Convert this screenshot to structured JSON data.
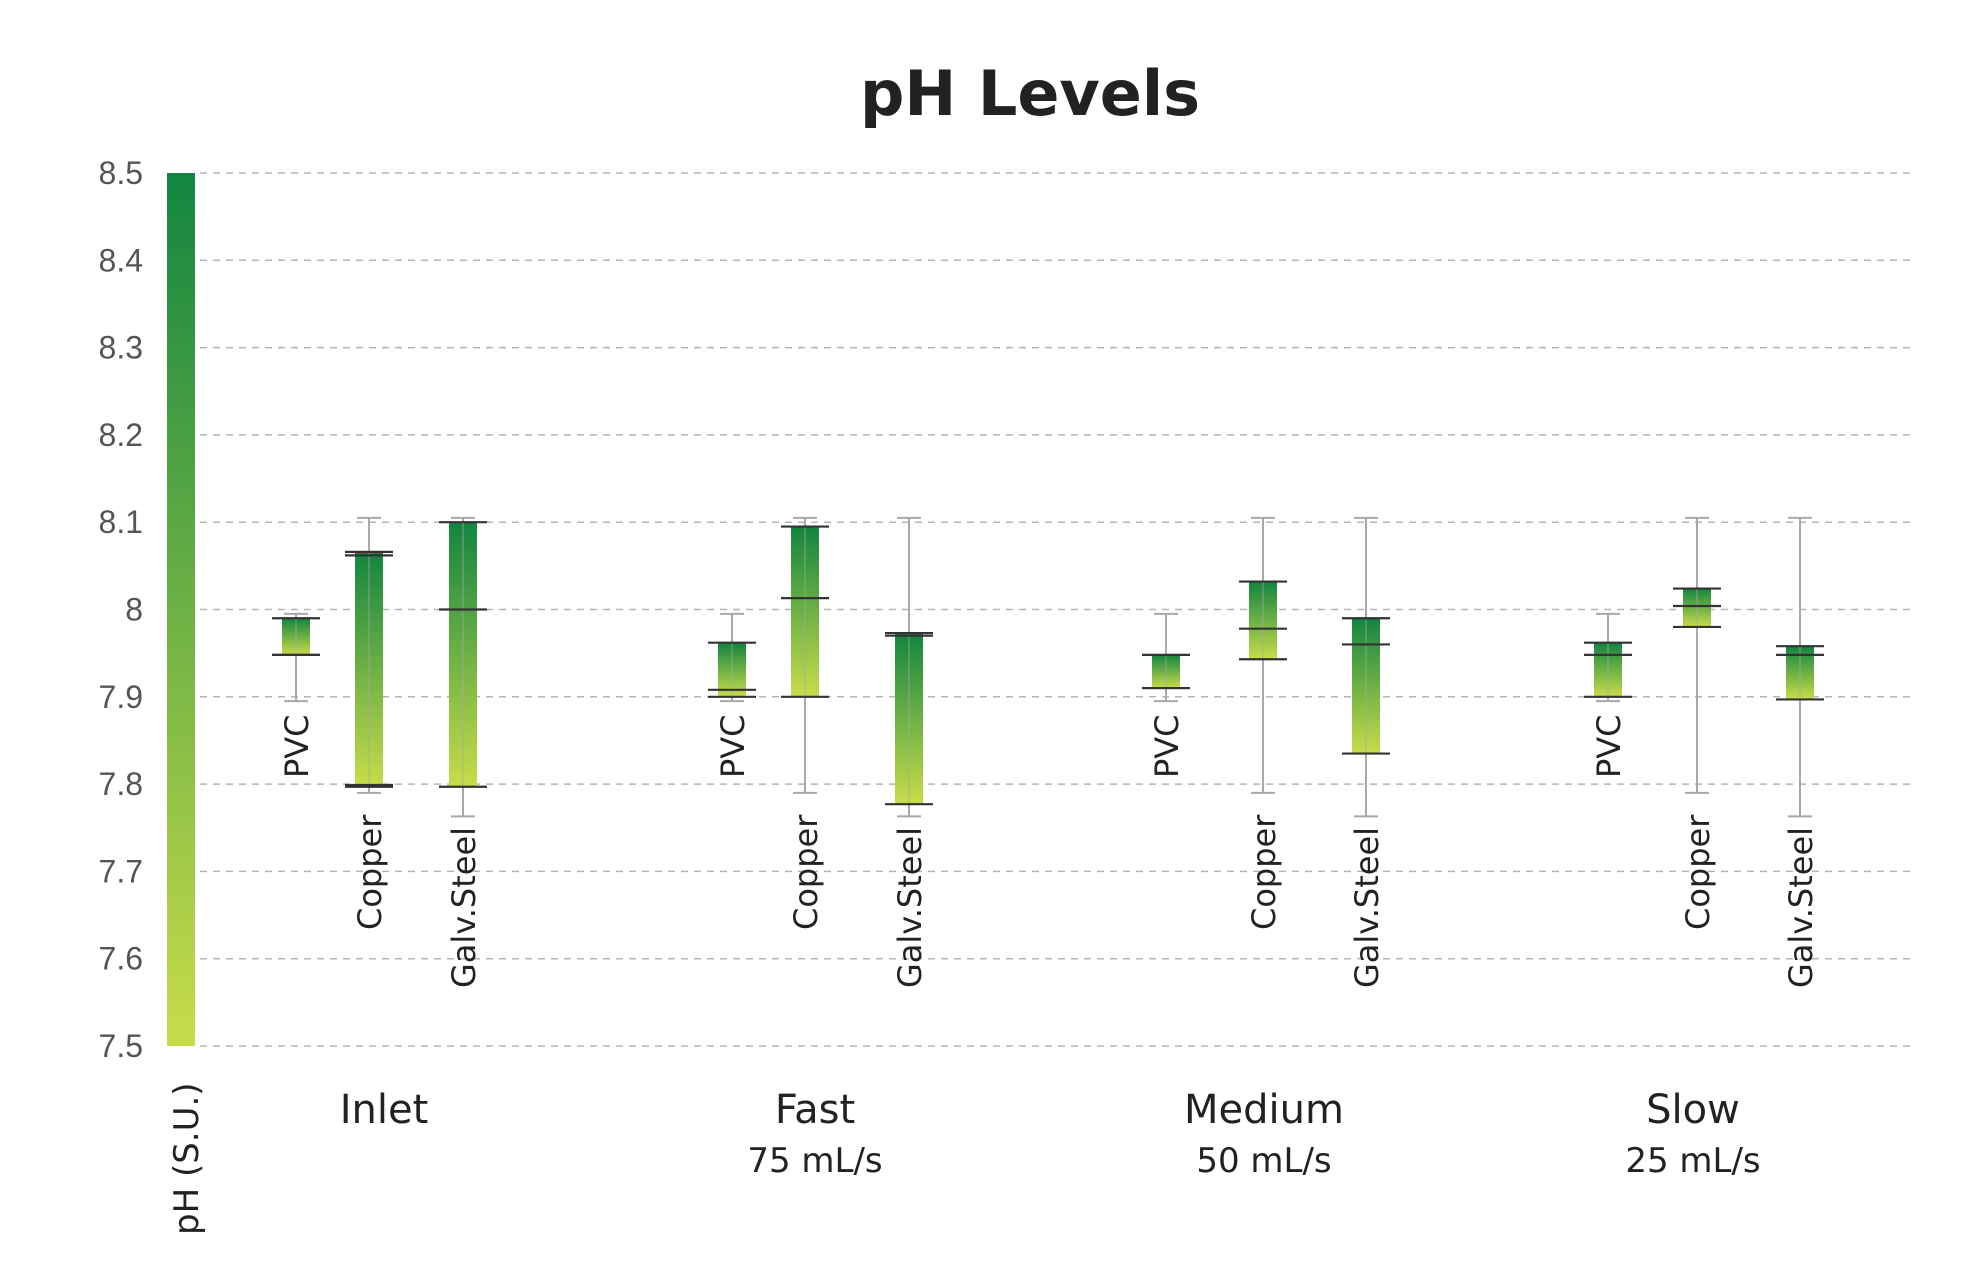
{
  "chart_data": {
    "type": "box",
    "title": "pH Levels",
    "ylabel": "pH (S.U.)",
    "ylim": [
      7.5,
      8.5
    ],
    "yticks": [
      "7.5",
      "7.6",
      "7.7",
      "7.8",
      "7.9",
      "8",
      "8.1",
      "8.2",
      "8.3",
      "8.4",
      "8.5"
    ],
    "grid": true,
    "colors": {
      "low": "#c8dc4a",
      "high": "#128540"
    },
    "categories": [
      {
        "label": "Inlet",
        "sublabel": ""
      },
      {
        "label": "Fast",
        "sublabel": "75 mL/s"
      },
      {
        "label": "Medium",
        "sublabel": "50 mL/s"
      },
      {
        "label": "Slow",
        "sublabel": "25 mL/s"
      }
    ],
    "series_labels": [
      "PVC",
      "Copper",
      "Galv.Steel"
    ],
    "boxes": [
      {
        "category": "Inlet",
        "series": "PVC",
        "min": 7.895,
        "q1": 7.948,
        "median": 7.948,
        "q3": 7.99,
        "max": 7.995,
        "extra": []
      },
      {
        "category": "Inlet",
        "series": "Copper",
        "min": 7.79,
        "q1": 7.797,
        "median": 8.062,
        "q3": 8.066,
        "max": 8.105,
        "extra": [
          7.799
        ]
      },
      {
        "category": "Inlet",
        "series": "Galv.Steel",
        "min": 7.763,
        "q1": 7.797,
        "median": 8.0,
        "q3": 8.1,
        "max": 8.105,
        "extra": []
      },
      {
        "category": "Fast",
        "series": "PVC",
        "min": 7.895,
        "q1": 7.9,
        "median": 7.908,
        "q3": 7.962,
        "max": 7.995,
        "extra": []
      },
      {
        "category": "Fast",
        "series": "Copper",
        "min": 7.79,
        "q1": 7.9,
        "median": 8.013,
        "q3": 8.095,
        "max": 8.105,
        "extra": []
      },
      {
        "category": "Fast",
        "series": "Galv.Steel",
        "min": 7.763,
        "q1": 7.777,
        "median": 7.97,
        "q3": 7.973,
        "max": 8.105,
        "extra": []
      },
      {
        "category": "Medium",
        "series": "PVC",
        "min": 7.895,
        "q1": 7.91,
        "median": 7.91,
        "q3": 7.948,
        "max": 7.995,
        "extra": []
      },
      {
        "category": "Medium",
        "series": "Copper",
        "min": 7.79,
        "q1": 7.943,
        "median": 7.978,
        "q3": 8.032,
        "max": 8.105,
        "extra": []
      },
      {
        "category": "Medium",
        "series": "Galv.Steel",
        "min": 7.763,
        "q1": 7.835,
        "median": 7.96,
        "q3": 7.99,
        "max": 8.105,
        "extra": []
      },
      {
        "category": "Slow",
        "series": "PVC",
        "min": 7.895,
        "q1": 7.9,
        "median": 7.948,
        "q3": 7.962,
        "max": 7.995,
        "extra": []
      },
      {
        "category": "Slow",
        "series": "Copper",
        "min": 7.79,
        "q1": 7.98,
        "median": 8.004,
        "q3": 8.024,
        "max": 8.105,
        "extra": []
      },
      {
        "category": "Slow",
        "series": "Galv.Steel",
        "min": 7.763,
        "q1": 7.897,
        "median": 7.948,
        "q3": 7.958,
        "max": 8.105,
        "extra": []
      }
    ]
  }
}
